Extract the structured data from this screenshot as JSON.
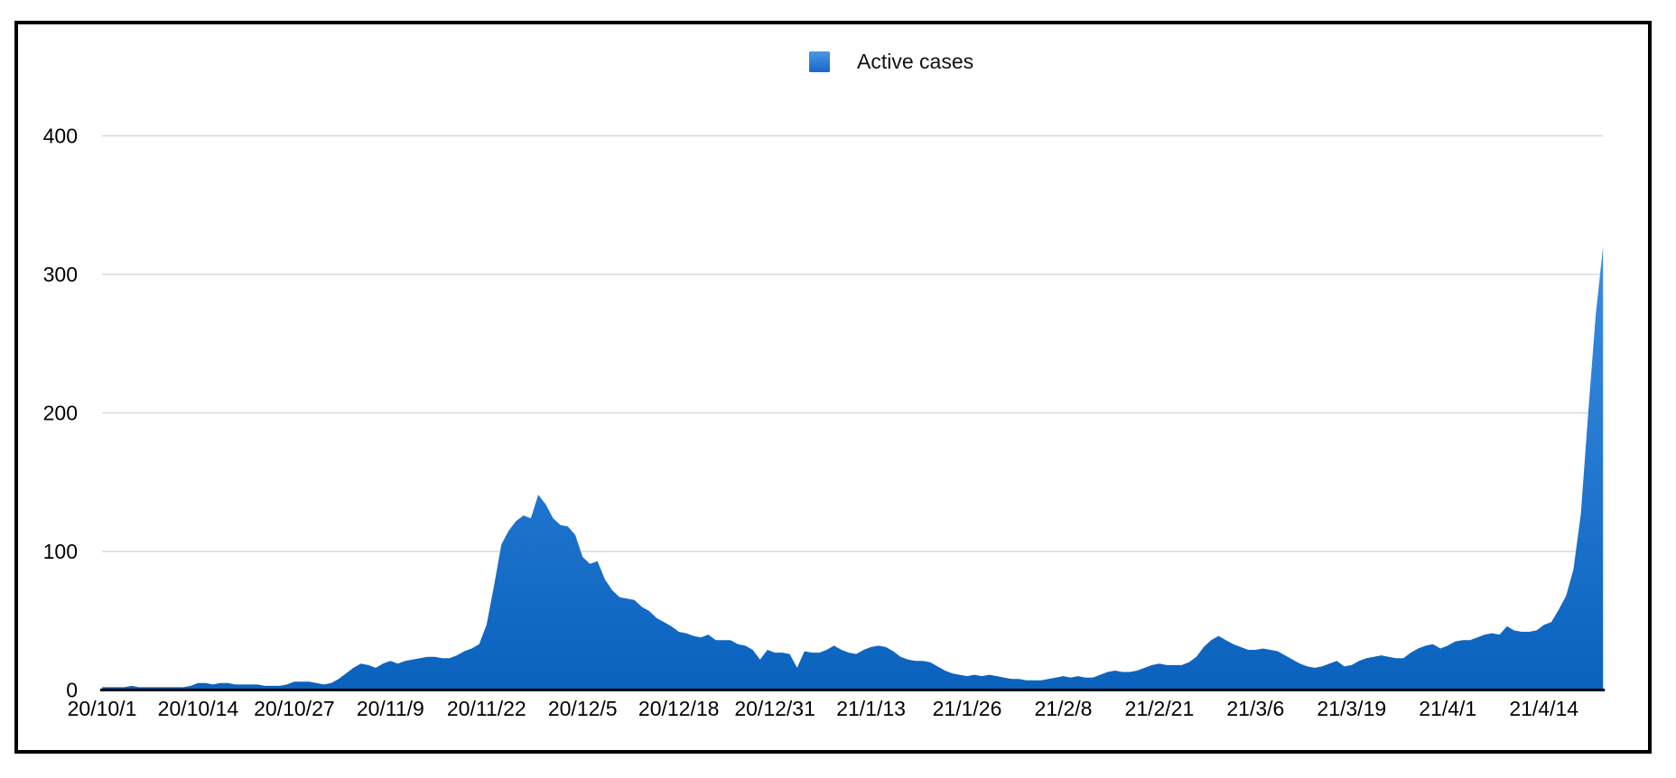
{
  "chart_data": {
    "type": "area",
    "title": "",
    "legend_position": "top-center",
    "grid": true,
    "series": [
      {
        "name": "Active cases",
        "color": "#1a74d3",
        "fill_gradient_top": "#3b8de2",
        "fill_gradient_bottom": "#0a62bd"
      }
    ],
    "x_unit": "day",
    "start_date": "2020-10-01",
    "end_date": "2021-04-22",
    "x_tick_interval_days": 13,
    "x_ticks": [
      "20/10/1",
      "20/10/14",
      "20/10/27",
      "20/11/9",
      "20/11/22",
      "20/12/5",
      "20/12/18",
      "20/12/31",
      "21/1/13",
      "21/1/26",
      "21/2/8",
      "21/2/21",
      "21/3/6",
      "21/3/19",
      "21/4/1",
      "21/4/14"
    ],
    "y_ticks": [
      0,
      100,
      200,
      300,
      400
    ],
    "ylim": [
      0,
      440
    ],
    "peak_value": 320,
    "values": [
      2,
      2,
      2,
      2,
      3,
      2,
      2,
      2,
      2,
      2,
      2,
      2,
      3,
      5,
      5,
      4,
      5,
      5,
      4,
      4,
      4,
      4,
      3,
      3,
      3,
      4,
      6,
      6,
      6,
      5,
      4,
      5,
      8,
      12,
      16,
      19,
      18,
      16,
      19,
      21,
      19,
      21,
      22,
      23,
      24,
      24,
      23,
      23,
      25,
      28,
      30,
      33,
      47,
      75,
      105,
      115,
      122,
      126,
      124,
      141,
      134,
      124,
      119,
      118,
      112,
      96,
      91,
      93,
      80,
      72,
      67,
      66,
      65,
      60,
      57,
      52,
      49,
      46,
      42,
      41,
      39,
      38,
      40,
      36,
      36,
      36,
      33,
      32,
      29,
      22,
      29,
      27,
      27,
      26,
      16,
      28,
      27,
      27,
      29,
      32,
      29,
      27,
      26,
      29,
      31,
      32,
      31,
      28,
      24,
      22,
      21,
      21,
      20,
      17,
      14,
      12,
      11,
      10,
      11,
      10,
      11,
      10,
      9,
      8,
      8,
      7,
      7,
      7,
      8,
      9,
      10,
      9,
      10,
      9,
      9,
      11,
      13,
      14,
      13,
      13,
      14,
      16,
      18,
      19,
      18,
      18,
      18,
      20,
      24,
      31,
      36,
      39,
      36,
      33,
      31,
      29,
      29,
      30,
      29,
      28,
      25,
      22,
      19,
      17,
      16,
      17,
      19,
      21,
      17,
      18,
      21,
      23,
      24,
      25,
      24,
      23,
      23,
      27,
      30,
      32,
      33,
      30,
      32,
      35,
      36,
      36,
      38,
      40,
      41,
      40,
      46,
      43,
      42,
      42,
      43,
      47,
      49,
      58,
      68,
      87,
      127,
      200,
      270,
      320
    ],
    "colors": {
      "gridline": "#d8d8d8",
      "axis_line": "#000000",
      "frame_border": "#000000",
      "label_text": "#000000"
    }
  }
}
